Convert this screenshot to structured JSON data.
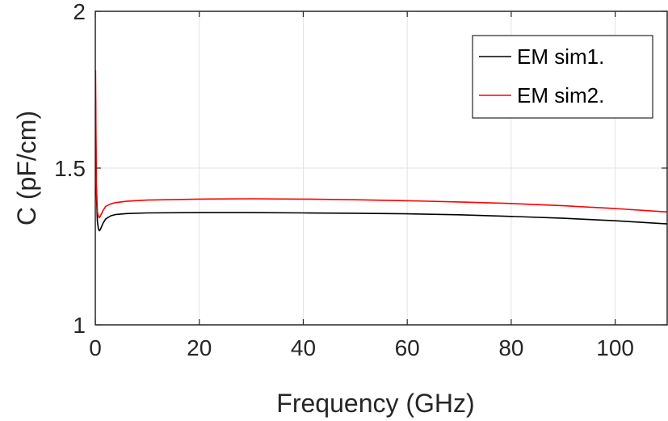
{
  "chart_data": {
    "type": "line",
    "title": "",
    "xlabel": "Frequency (GHz)",
    "ylabel": "C (pF/cm)",
    "xlim": [
      0,
      110
    ],
    "ylim": [
      1,
      2
    ],
    "xticks": [
      0,
      20,
      40,
      60,
      80,
      100
    ],
    "yticks": [
      1,
      1.5,
      2
    ],
    "xtick_labels": [
      "0",
      "20",
      "40",
      "60",
      "80",
      "100"
    ],
    "ytick_labels": [
      "1",
      "1.5",
      "2"
    ],
    "grid": true,
    "legend_position": "top-right",
    "series": [
      {
        "name": "EM sim1.",
        "color": "#000000",
        "x": [
          0.05,
          0.2,
          0.4,
          0.6,
          0.8,
          1.0,
          1.5,
          2,
          3,
          4,
          6,
          10,
          20,
          30,
          40,
          50,
          60,
          70,
          80,
          90,
          100,
          110
        ],
        "y": [
          1.72,
          1.42,
          1.33,
          1.305,
          1.3,
          1.305,
          1.325,
          1.338,
          1.348,
          1.352,
          1.355,
          1.357,
          1.358,
          1.358,
          1.357,
          1.356,
          1.354,
          1.351,
          1.346,
          1.34,
          1.332,
          1.322
        ]
      },
      {
        "name": "EM sim2.",
        "color": "#ff0000",
        "x": [
          0.05,
          0.2,
          0.4,
          0.6,
          0.8,
          1.0,
          1.5,
          2,
          3,
          4,
          6,
          10,
          20,
          30,
          40,
          50,
          60,
          70,
          80,
          90,
          100,
          110
        ],
        "y": [
          1.81,
          1.45,
          1.36,
          1.345,
          1.342,
          1.348,
          1.365,
          1.378,
          1.386,
          1.39,
          1.394,
          1.398,
          1.401,
          1.402,
          1.401,
          1.399,
          1.396,
          1.392,
          1.387,
          1.38,
          1.371,
          1.36
        ]
      }
    ]
  }
}
